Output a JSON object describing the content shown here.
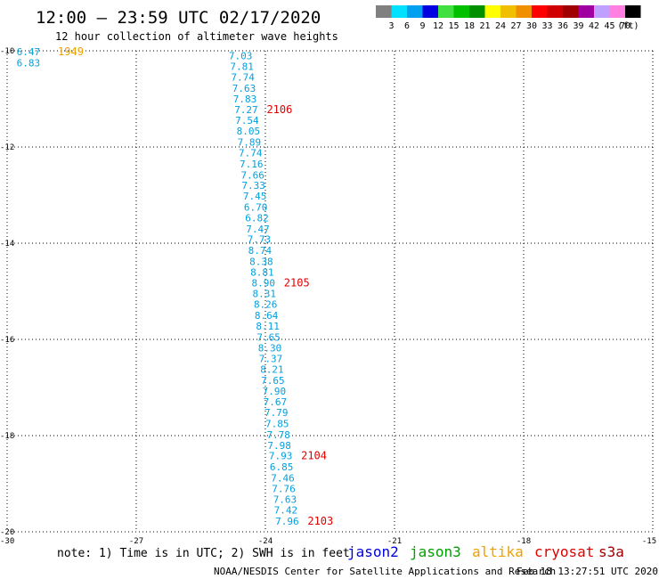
{
  "header": {
    "title": "12:00 – 23:59 UTC 02/17/2020",
    "subtitle": "12 hour collection of altimeter wave heights"
  },
  "legend": {
    "labels": [
      "3",
      "6",
      "9",
      "12",
      "15",
      "18",
      "21",
      "24",
      "27",
      "30",
      "33",
      "36",
      "39",
      "42",
      "45",
      "70"
    ],
    "unit": "(ft)",
    "colors": [
      "#808080",
      "#00e0ff",
      "#00a0f0",
      "#0000e0",
      "#40e040",
      "#00c000",
      "#009000",
      "#ffff00",
      "#f0c000",
      "#f09000",
      "#ff0000",
      "#d00000",
      "#a00000",
      "#a000a0",
      "#c0a0ff",
      "#ff80e0",
      "#000000"
    ]
  },
  "chart_data": {
    "type": "map",
    "x_axis": {
      "ticks": [
        -30,
        -27,
        -24,
        -21,
        -18,
        -15
      ],
      "labels": [
        "-30",
        "-27",
        "-24",
        "-21",
        "-18",
        "-15"
      ]
    },
    "y_axis": {
      "ticks": [
        -10,
        -12,
        -14,
        -16,
        -18,
        -20
      ],
      "labels": [
        "-10",
        "-12",
        "-14",
        "-16",
        "-18",
        "-20"
      ]
    },
    "grid": "dotted",
    "wave_color": "#00a0e0",
    "wave_heights": [
      {
        "lon": -29.78,
        "lat": -10.02,
        "value": "6.47"
      },
      {
        "lon": -29.78,
        "lat": -10.25,
        "value": "6.83"
      },
      {
        "lon": -24.85,
        "lat": -10.1,
        "value": "7.03"
      },
      {
        "lon": -24.82,
        "lat": -10.32,
        "value": "7.81"
      },
      {
        "lon": -24.8,
        "lat": -10.55,
        "value": "7.74"
      },
      {
        "lon": -24.77,
        "lat": -10.78,
        "value": "7.63"
      },
      {
        "lon": -24.75,
        "lat": -11.0,
        "value": "7.83"
      },
      {
        "lon": -24.72,
        "lat": -11.22,
        "value": "7.27"
      },
      {
        "lon": -24.7,
        "lat": -11.44,
        "value": "7.54"
      },
      {
        "lon": -24.67,
        "lat": -11.67,
        "value": "8.05"
      },
      {
        "lon": -24.65,
        "lat": -11.9,
        "value": "7.89"
      },
      {
        "lon": -24.62,
        "lat": -12.12,
        "value": "7.74"
      },
      {
        "lon": -24.6,
        "lat": -12.35,
        "value": "7.16"
      },
      {
        "lon": -24.57,
        "lat": -12.58,
        "value": "7.66"
      },
      {
        "lon": -24.55,
        "lat": -12.8,
        "value": "7.33"
      },
      {
        "lon": -24.52,
        "lat": -13.02,
        "value": "7.45"
      },
      {
        "lon": -24.5,
        "lat": -13.25,
        "value": "6.70"
      },
      {
        "lon": -24.47,
        "lat": -13.47,
        "value": "6.82"
      },
      {
        "lon": -24.45,
        "lat": -13.7,
        "value": "7.47"
      },
      {
        "lon": -24.42,
        "lat": -13.92,
        "value": "7.73"
      },
      {
        "lon": -24.4,
        "lat": -14.15,
        "value": "8.74"
      },
      {
        "lon": -24.37,
        "lat": -14.38,
        "value": "8.38"
      },
      {
        "lon": -24.35,
        "lat": -14.6,
        "value": "8.81"
      },
      {
        "lon": -24.32,
        "lat": -14.82,
        "value": "8.90"
      },
      {
        "lon": -24.3,
        "lat": -15.05,
        "value": "8.31"
      },
      {
        "lon": -24.27,
        "lat": -15.27,
        "value": "8.26"
      },
      {
        "lon": -24.25,
        "lat": -15.5,
        "value": "8.64"
      },
      {
        "lon": -24.22,
        "lat": -15.72,
        "value": "8.11"
      },
      {
        "lon": -24.2,
        "lat": -15.95,
        "value": "7.65"
      },
      {
        "lon": -24.17,
        "lat": -16.18,
        "value": "8.30"
      },
      {
        "lon": -24.15,
        "lat": -16.4,
        "value": "7.37"
      },
      {
        "lon": -24.12,
        "lat": -16.62,
        "value": "8.21"
      },
      {
        "lon": -24.1,
        "lat": -16.85,
        "value": "7.65"
      },
      {
        "lon": -24.07,
        "lat": -17.07,
        "value": "7.90"
      },
      {
        "lon": -24.05,
        "lat": -17.3,
        "value": "7.67"
      },
      {
        "lon": -24.02,
        "lat": -17.52,
        "value": "7.79"
      },
      {
        "lon": -24.0,
        "lat": -17.75,
        "value": "7.85"
      },
      {
        "lon": -23.97,
        "lat": -17.98,
        "value": "7.78"
      },
      {
        "lon": -23.95,
        "lat": -18.2,
        "value": "7.98"
      },
      {
        "lon": -23.92,
        "lat": -18.42,
        "value": "7.93"
      },
      {
        "lon": -23.9,
        "lat": -18.65,
        "value": "6.85"
      },
      {
        "lon": -23.87,
        "lat": -18.88,
        "value": "7.46"
      },
      {
        "lon": -23.85,
        "lat": -19.1,
        "value": "7.76"
      },
      {
        "lon": -23.82,
        "lat": -19.32,
        "value": "7.63"
      },
      {
        "lon": -23.8,
        "lat": -19.55,
        "value": "7.42"
      },
      {
        "lon": -23.77,
        "lat": -19.78,
        "value": "7.96"
      }
    ],
    "time_labels": [
      {
        "lon": -28.82,
        "lat": -10.02,
        "text": "1949",
        "color": "#f0a000"
      },
      {
        "lon": -23.97,
        "lat": -11.22,
        "text": "2106",
        "color": "#e00000"
      },
      {
        "lon": -23.57,
        "lat": -14.82,
        "text": "2105",
        "color": "#e00000"
      },
      {
        "lon": -23.17,
        "lat": -18.42,
        "text": "2104",
        "color": "#e00000"
      },
      {
        "lon": -23.02,
        "lat": -19.78,
        "text": "2103",
        "color": "#e00000"
      }
    ]
  },
  "footer": {
    "note": "note: 1) Time is in UTC; 2) SWH is in feet",
    "satellites": [
      {
        "name": "jason2",
        "color": "#0000e0"
      },
      {
        "name": "jason3",
        "color": "#00a000"
      },
      {
        "name": "altika",
        "color": "#f0a000"
      },
      {
        "name": "cryosat",
        "color": "#e00000"
      },
      {
        "name": "s3a",
        "color": "#a00000"
      }
    ],
    "credit": "NOAA/NESDIS Center for Satellite Applications and Research",
    "timestamp": "Feb 18 13:27:51 UTC 2020"
  }
}
